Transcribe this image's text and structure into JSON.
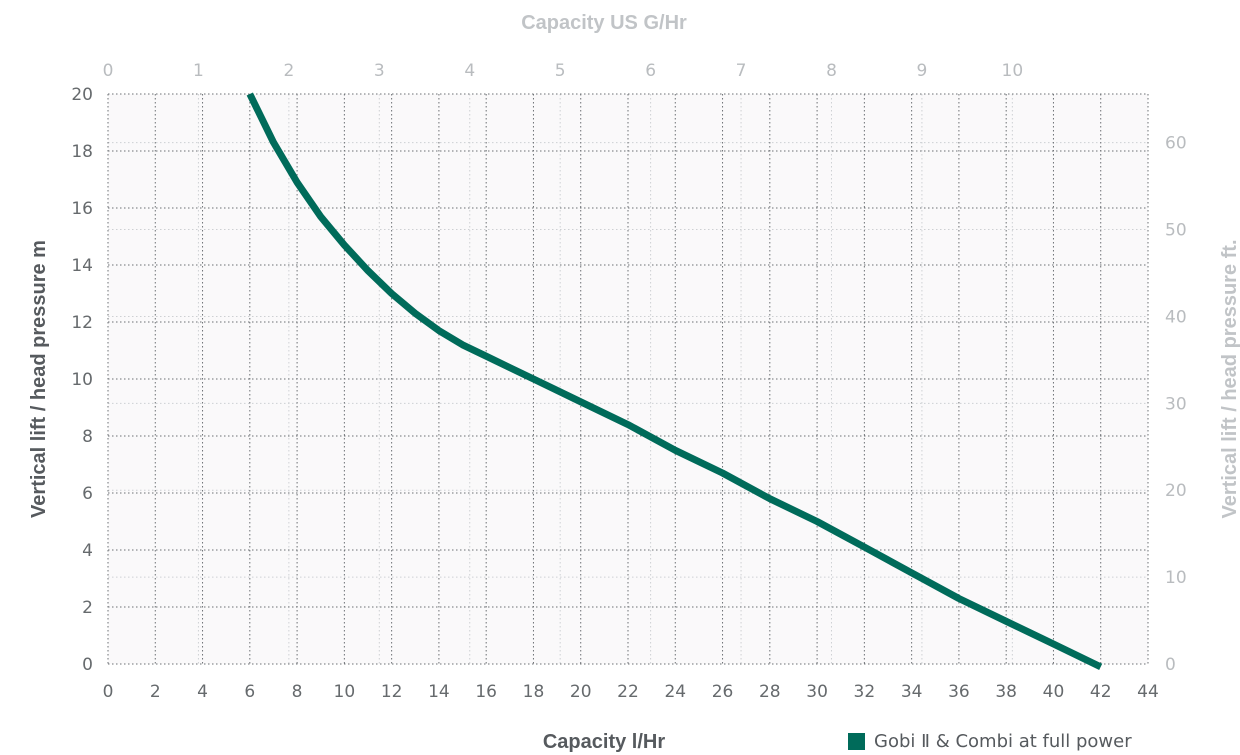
{
  "chart_data": {
    "type": "line",
    "xlabel": "Capacity l/Hr",
    "ylabel": "Vertical lift / head pressure m",
    "x2label": "Capacity US G/Hr",
    "y2label": "Vertical lift / head pressure ft.",
    "xlim": [
      0,
      44
    ],
    "ylim": [
      0,
      20
    ],
    "x2lim": [
      0,
      11.5
    ],
    "y2lim": [
      0,
      65.6
    ],
    "x_ticks": [
      "0",
      "2",
      "4",
      "6",
      "8",
      "10",
      "12",
      "14",
      "16",
      "18",
      "20",
      "22",
      "24",
      "26",
      "28",
      "30",
      "32",
      "34",
      "36",
      "38",
      "40",
      "42",
      "44"
    ],
    "y_ticks": [
      "0",
      "2",
      "4",
      "6",
      "8",
      "10",
      "12",
      "14",
      "16",
      "18",
      "20"
    ],
    "x2_ticks": [
      "0",
      "1",
      "2",
      "3",
      "4",
      "5",
      "6",
      "7",
      "8",
      "9",
      "10"
    ],
    "y2_ticks": [
      "0",
      "10",
      "20",
      "30",
      "40",
      "50",
      "60"
    ],
    "grid": true,
    "legend_position": "bottom-right",
    "series": [
      {
        "name": "Gobi Ⅱ & Combi at full power",
        "color": "#006b5a",
        "x": [
          6.0,
          7.0,
          8.0,
          9.0,
          10.0,
          11.0,
          12.0,
          13.0,
          14.0,
          15.0,
          16.0,
          17.0,
          18.0,
          20.0,
          22.0,
          24.0,
          26.0,
          28.0,
          30.0,
          32.0,
          34.0,
          36.0,
          38.0,
          40.0,
          42.0
        ],
        "y": [
          20.0,
          18.3,
          16.9,
          15.7,
          14.7,
          13.8,
          13.0,
          12.3,
          11.7,
          11.2,
          10.8,
          10.4,
          10.0,
          9.2,
          8.4,
          7.5,
          6.7,
          5.8,
          5.0,
          4.1,
          3.2,
          2.3,
          1.5,
          0.7,
          -0.1
        ]
      }
    ]
  }
}
